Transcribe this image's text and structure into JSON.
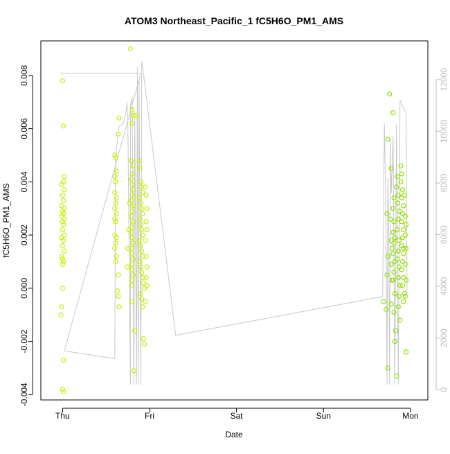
{
  "chart_data": {
    "type": "scatter",
    "title": "ATOM3 Northeast_Pacific_1 fC5H6O_PM1_AMS",
    "xlabel": "Date",
    "ylabel": "fC5H6O_PM1_AMS",
    "x_ticks": [
      "Thu",
      "Fri",
      "Sat",
      "Sun",
      "Mon"
    ],
    "x_range_days": [
      -0.25,
      4.2
    ],
    "ylim": [
      -0.0042,
      0.0093
    ],
    "y_ticks": [
      "-0.004",
      "-0.002",
      "0.000",
      "0.002",
      "0.004",
      "0.006",
      "0.008"
    ],
    "y_tick_values": [
      -0.004,
      -0.002,
      0,
      0.002,
      0.004,
      0.006,
      0.008
    ],
    "y2_ticks": [
      "0",
      "2000",
      "4000",
      "6000",
      "8000",
      "10000",
      "12000"
    ],
    "y2_tick_values": [
      0,
      2000,
      4000,
      6000,
      8000,
      10000,
      12000
    ],
    "y2lim": [
      -400,
      13500
    ],
    "grid": false,
    "series": [
      {
        "color": "#c6f000",
        "points": [
          [
            0.0,
            0.0078
          ],
          [
            0.01,
            0.0061
          ],
          [
            -0.01,
            0.0039
          ],
          [
            0.02,
            0.0037
          ],
          [
            0.0,
            0.0035
          ],
          [
            0.01,
            0.0033
          ],
          [
            -0.01,
            0.0031
          ],
          [
            0.02,
            0.003
          ],
          [
            0.0,
            0.0029
          ],
          [
            0.01,
            0.0028
          ],
          [
            -0.01,
            0.0027
          ],
          [
            0.02,
            0.0026
          ],
          [
            0.0,
            0.0025
          ],
          [
            0.01,
            0.0024
          ],
          [
            0.0,
            0.0022
          ],
          [
            0.02,
            0.002
          ],
          [
            -0.01,
            0.0019
          ],
          [
            0.01,
            0.0018
          ],
          [
            0.0,
            0.0016
          ],
          [
            0.02,
            0.0014
          ],
          [
            -0.01,
            0.0012
          ],
          [
            0.0,
            0.0011
          ],
          [
            0.01,
            0.001
          ],
          [
            0.0,
            0.0009
          ],
          [
            0.02,
            0.0042
          ],
          [
            0.01,
            0.004
          ],
          [
            0.0,
            0.0
          ],
          [
            -0.01,
            -0.0007
          ],
          [
            -0.02,
            -0.001
          ],
          [
            0.01,
            -0.0027
          ],
          [
            0.0,
            -0.0038
          ],
          [
            0.01,
            -0.0039
          ],
          [
            0.6,
            0.005
          ],
          [
            0.61,
            0.0049
          ],
          [
            0.62,
            0.0044
          ],
          [
            0.6,
            0.0042
          ],
          [
            0.61,
            0.004
          ],
          [
            0.6,
            0.0036
          ],
          [
            0.62,
            0.0034
          ],
          [
            0.61,
            0.0032
          ],
          [
            0.6,
            0.003
          ],
          [
            0.62,
            0.0028
          ],
          [
            0.6,
            0.0026
          ],
          [
            0.61,
            0.0025
          ],
          [
            0.6,
            0.002
          ],
          [
            0.62,
            0.0019
          ],
          [
            0.61,
            0.0017
          ],
          [
            0.6,
            0.0015
          ],
          [
            0.62,
            0.0012
          ],
          [
            0.61,
            0.001
          ],
          [
            0.63,
            -0.0001
          ],
          [
            0.64,
            -0.0003
          ],
          [
            0.65,
            -0.0007
          ],
          [
            0.64,
            0.0005
          ],
          [
            0.65,
            0.0064
          ],
          [
            0.64,
            0.0058
          ],
          [
            0.8,
            0.0067
          ],
          [
            0.81,
            0.0065
          ],
          [
            0.8,
            0.0062
          ],
          [
            0.79,
            0.0048
          ],
          [
            0.81,
            0.0046
          ],
          [
            0.8,
            0.0043
          ],
          [
            0.79,
            0.0041
          ],
          [
            0.8,
            0.0039
          ],
          [
            0.81,
            0.0037
          ],
          [
            0.8,
            0.0035
          ],
          [
            0.79,
            0.0033
          ],
          [
            0.81,
            0.0031
          ],
          [
            0.8,
            0.0029
          ],
          [
            0.79,
            0.0027
          ],
          [
            0.81,
            0.0025
          ],
          [
            0.8,
            0.0023
          ],
          [
            0.79,
            0.0021
          ],
          [
            0.8,
            0.0019
          ],
          [
            0.81,
            0.0017
          ],
          [
            0.8,
            0.0015
          ],
          [
            0.79,
            0.0013
          ],
          [
            0.81,
            0.0011
          ],
          [
            0.8,
            0.0009
          ],
          [
            0.79,
            0.0007
          ],
          [
            0.81,
            0.0005
          ],
          [
            0.8,
            0.0003
          ],
          [
            0.79,
            0.0001
          ],
          [
            0.8,
            -0.0005
          ],
          [
            0.83,
            -0.0016
          ],
          [
            0.82,
            -0.0031
          ],
          [
            0.78,
            0.009
          ],
          [
            0.84,
            0.0065
          ],
          [
            0.77,
            0.0032
          ],
          [
            0.76,
            0.0022
          ],
          [
            0.75,
            0.0015
          ],
          [
            0.74,
            0.0008
          ],
          [
            0.88,
            0.0048
          ],
          [
            0.89,
            0.0045
          ],
          [
            0.9,
            0.004
          ],
          [
            0.91,
            0.0038
          ],
          [
            0.92,
            0.0036
          ],
          [
            0.88,
            0.0034
          ],
          [
            0.9,
            0.0032
          ],
          [
            0.91,
            0.003
          ],
          [
            0.92,
            0.0028
          ],
          [
            0.89,
            0.0026
          ],
          [
            0.9,
            0.0024
          ],
          [
            0.91,
            0.0022
          ],
          [
            0.92,
            0.002
          ],
          [
            0.88,
            0.0018
          ],
          [
            0.9,
            0.0016
          ],
          [
            0.91,
            0.0014
          ],
          [
            0.92,
            0.0012
          ],
          [
            0.89,
            0.001
          ],
          [
            0.9,
            0.0008
          ],
          [
            0.91,
            0.0006
          ],
          [
            0.92,
            0.0004
          ],
          [
            0.93,
            0.0002
          ],
          [
            0.94,
            0.0
          ],
          [
            0.9,
            -0.0002
          ],
          [
            0.91,
            -0.0004
          ],
          [
            0.92,
            -0.0007
          ],
          [
            0.95,
            0.0038
          ],
          [
            0.96,
            0.0035
          ],
          [
            0.97,
            0.003
          ],
          [
            0.96,
            0.0025
          ],
          [
            0.97,
            0.0022
          ],
          [
            0.95,
            0.0018
          ],
          [
            0.96,
            0.0012
          ],
          [
            0.97,
            0.0008
          ],
          [
            0.96,
            0.0004
          ],
          [
            0.97,
            0.0001
          ],
          [
            0.95,
            -0.0005
          ],
          [
            0.93,
            -0.0019
          ],
          [
            0.94,
            -0.0021
          ]
        ]
      },
      {
        "color": "#8ee000",
        "points": [
          [
            3.69,
            -0.0005
          ],
          [
            3.72,
            -0.0008
          ],
          [
            3.74,
            0.0056
          ],
          [
            3.73,
            0.0028
          ],
          [
            3.74,
            0.0012
          ],
          [
            3.73,
            0.0005
          ],
          [
            3.74,
            -0.003
          ],
          [
            3.76,
            0.0073
          ],
          [
            3.78,
            0.0045
          ],
          [
            3.77,
            0.0026
          ],
          [
            3.78,
            0.0018
          ],
          [
            3.79,
            0.0015
          ],
          [
            3.78,
            0.0009
          ],
          [
            3.79,
            0.0003
          ],
          [
            3.78,
            -0.0006
          ],
          [
            3.8,
            0.0066
          ],
          [
            3.81,
            0.0034
          ],
          [
            3.8,
            0.003
          ],
          [
            3.81,
            0.0025
          ],
          [
            3.8,
            0.0021
          ],
          [
            3.82,
            0.0019
          ],
          [
            3.81,
            0.0017
          ],
          [
            3.8,
            0.0013
          ],
          [
            3.82,
            0.001
          ],
          [
            3.81,
            0.0006
          ],
          [
            3.8,
            0.0003
          ],
          [
            3.82,
            -0.0002
          ],
          [
            3.81,
            -0.0009
          ],
          [
            3.83,
            -0.0016
          ],
          [
            3.82,
            -0.002
          ],
          [
            3.84,
            -0.0033
          ],
          [
            3.85,
            0.0042
          ],
          [
            3.84,
            0.0038
          ],
          [
            3.86,
            0.0035
          ],
          [
            3.85,
            0.0032
          ],
          [
            3.87,
            0.0029
          ],
          [
            3.86,
            0.0026
          ],
          [
            3.85,
            0.0022
          ],
          [
            3.87,
            0.0018
          ],
          [
            3.86,
            0.0014
          ],
          [
            3.85,
            0.0011
          ],
          [
            3.87,
            0.0008
          ],
          [
            3.86,
            0.0004
          ],
          [
            3.88,
            0.0001
          ],
          [
            3.87,
            -0.0003
          ],
          [
            3.86,
            -0.0007
          ],
          [
            3.88,
            -0.0012
          ],
          [
            3.89,
            0.0046
          ],
          [
            3.9,
            0.0043
          ],
          [
            3.89,
            0.004
          ],
          [
            3.91,
            0.0037
          ],
          [
            3.9,
            0.0034
          ],
          [
            3.92,
            0.0031
          ],
          [
            3.91,
            0.0028
          ],
          [
            3.9,
            0.0025
          ],
          [
            3.92,
            0.0022
          ],
          [
            3.91,
            0.0019
          ],
          [
            3.9,
            0.0016
          ],
          [
            3.92,
            0.0013
          ],
          [
            3.91,
            0.001
          ],
          [
            3.9,
            0.0007
          ],
          [
            3.92,
            0.0004
          ],
          [
            3.91,
            0.0001
          ],
          [
            3.93,
            -0.0002
          ],
          [
            3.92,
            -0.0005
          ],
          [
            3.94,
            0.0027
          ],
          [
            3.95,
            0.0024
          ],
          [
            3.94,
            0.002
          ],
          [
            3.95,
            0.0015
          ],
          [
            3.94,
            0.0009
          ],
          [
            3.95,
            0.0003
          ],
          [
            3.94,
            -0.0003
          ],
          [
            3.95,
            -0.0024
          ],
          [
            3.92,
            0.0015
          ],
          [
            3.93,
            0.0035
          ]
        ]
      }
    ],
    "y2_line": {
      "color": "#c8c8c8",
      "points": [
        [
          -0.01,
          12300
        ],
        [
          0.0,
          12200
        ],
        [
          0.0,
          12250
        ],
        [
          0.9,
          12250
        ],
        [
          0.02,
          1500
        ],
        [
          0.6,
          1200
        ],
        [
          0.61,
          9000
        ],
        [
          0.65,
          10200
        ],
        [
          0.7,
          10300
        ],
        [
          0.73,
          10800
        ],
        [
          0.74,
          11100
        ],
        [
          0.75,
          10500
        ],
        [
          0.78,
          200
        ],
        [
          0.78,
          11000
        ],
        [
          0.8,
          11300
        ],
        [
          0.82,
          200
        ],
        [
          0.83,
          10500
        ],
        [
          0.85,
          200
        ],
        [
          0.86,
          12500
        ],
        [
          0.87,
          200
        ],
        [
          0.88,
          12000
        ],
        [
          0.9,
          200
        ],
        [
          0.91,
          12700
        ],
        [
          0.92,
          12500
        ],
        [
          1.3,
          2100
        ],
        [
          3.68,
          3600
        ],
        [
          3.7,
          10300
        ],
        [
          3.71,
          8500
        ],
        [
          3.72,
          5800
        ],
        [
          3.73,
          200
        ],
        [
          3.74,
          8200
        ],
        [
          3.75,
          6200
        ],
        [
          3.76,
          200
        ],
        [
          3.77,
          9700
        ],
        [
          3.78,
          7600
        ],
        [
          3.8,
          9800
        ],
        [
          3.82,
          200
        ],
        [
          3.84,
          10300
        ],
        [
          3.86,
          200
        ],
        [
          3.88,
          11200
        ],
        [
          3.92,
          10900
        ],
        [
          3.95,
          10700
        ],
        [
          3.96,
          3700
        ]
      ]
    }
  }
}
